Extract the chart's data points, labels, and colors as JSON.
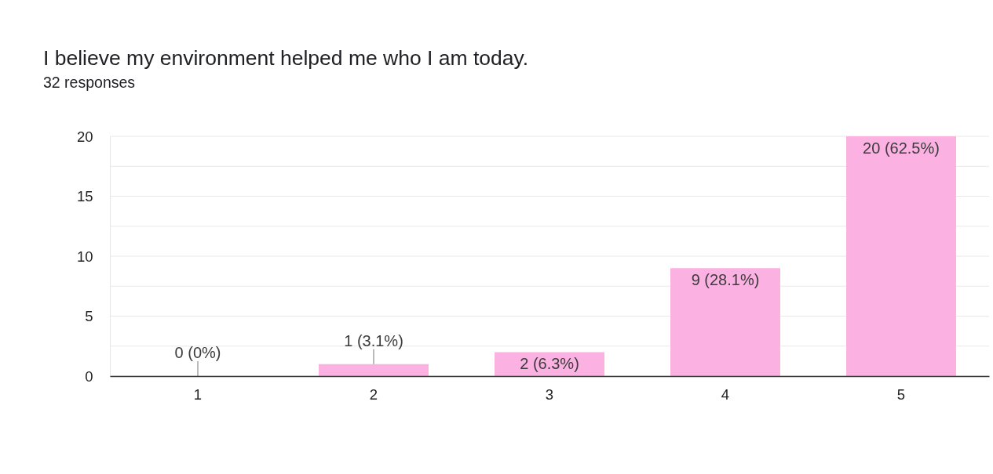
{
  "chart_data": {
    "type": "bar",
    "title": "I believe my environment helped me who I am today.",
    "subtitle": "32 responses",
    "categories": [
      "1",
      "2",
      "3",
      "4",
      "5"
    ],
    "values": [
      0,
      1,
      2,
      9,
      20
    ],
    "color": "#fbb1e2",
    "value_labels": [
      "0 (0%)",
      "1 (3.1%)",
      "2 (6.3%)",
      "9 (28.1%)",
      "20 (62.5%)"
    ],
    "ylim": [
      0,
      20
    ],
    "yticks": [
      0,
      {
        "value": 2.5,
        "label": null
      },
      5,
      {
        "value": 7.5,
        "label": null
      },
      10,
      {
        "value": 12.5,
        "label": null
      },
      15,
      {
        "value": 17.5,
        "label": null
      },
      20
    ],
    "grid": "y"
  }
}
